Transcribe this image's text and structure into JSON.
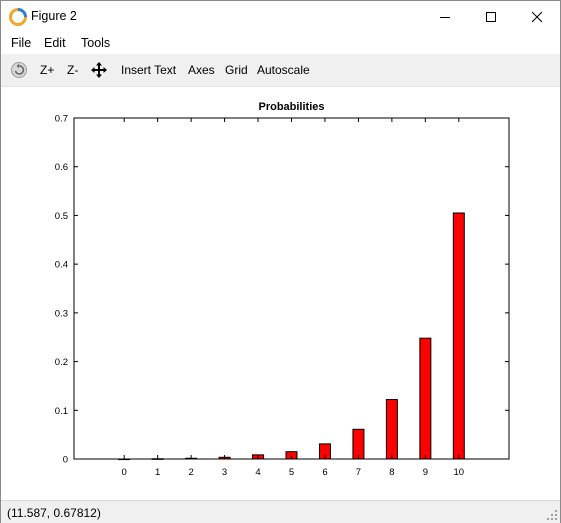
{
  "window": {
    "title": "Figure 2"
  },
  "menu": {
    "items": [
      "File",
      "Edit",
      "Tools"
    ]
  },
  "toolbar": {
    "zoom_in": "Z+",
    "zoom_out": "Z-",
    "insert_text": "Insert Text",
    "axes": "Axes",
    "grid": "Grid",
    "autoscale": "Autoscale"
  },
  "status": {
    "coordinates": "(11.587, 0.67812)"
  },
  "chart_data": {
    "type": "bar",
    "title": "Probabilities",
    "categories": [
      "0",
      "1",
      "2",
      "3",
      "4",
      "5",
      "6",
      "7",
      "8",
      "9",
      "10"
    ],
    "values": [
      0.0,
      0.0005,
      0.0015,
      0.0035,
      0.0085,
      0.015,
      0.031,
      0.061,
      0.122,
      0.248,
      0.505
    ],
    "y_ticks": [
      "0",
      "0.1",
      "0.2",
      "0.3",
      "0.4",
      "0.5",
      "0.6",
      "0.7"
    ],
    "ylim": [
      0,
      0.7
    ],
    "xlim": [
      -1.5,
      11.5
    ],
    "grid": false,
    "bar_color": "#ff0000",
    "bar_edge_color": "#000000"
  }
}
